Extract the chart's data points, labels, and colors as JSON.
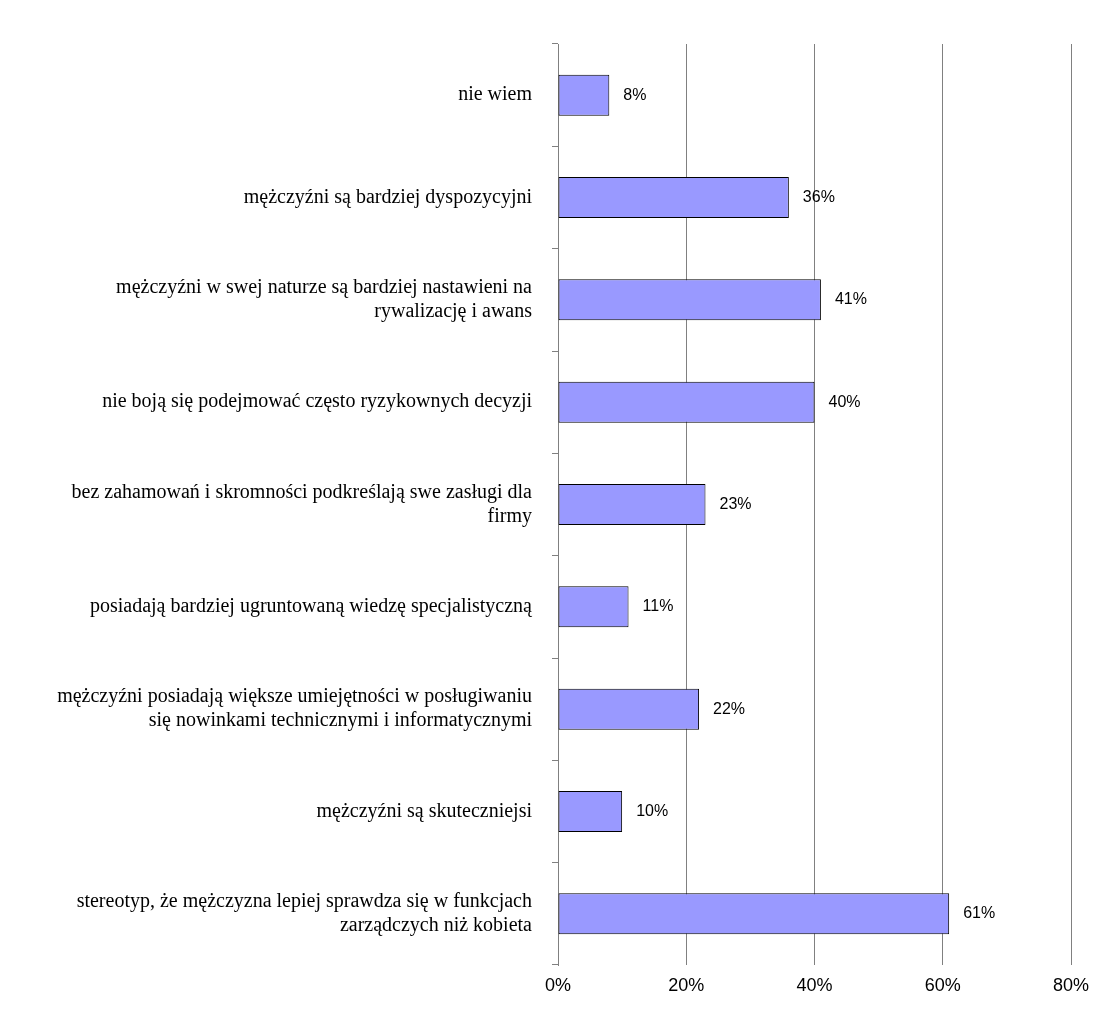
{
  "chart_data": {
    "type": "bar",
    "orientation": "horizontal",
    "categories": [
      "nie wiem",
      "mężczyźni są bardziej dyspozycyjni",
      "mężczyźni w swej naturze są bardziej nastawieni na rywalizację i awans",
      "nie boją się podejmować często ryzykownych decyzji",
      "bez zahamowań i skromności podkreślają swe zasługi dla firmy",
      "posiadają bardziej ugruntowaną wiedzę specjalistyczną",
      "mężczyźni posiadają większe umiejętności w posługiwaniu się nowinkami technicznymi i informatycznymi",
      "mężczyźni są skuteczniejsi",
      "stereotyp, że mężczyzna lepiej sprawdza się w funkcjach zarządczych niż kobieta"
    ],
    "values": [
      8,
      36,
      41,
      40,
      23,
      11,
      22,
      10,
      61
    ],
    "value_labels": [
      "8%",
      "36%",
      "41%",
      "40%",
      "23%",
      "11%",
      "22%",
      "10%",
      "61%"
    ],
    "color": "#9999ff",
    "xlim": [
      0,
      80
    ],
    "xticks": [
      {
        "value": 0,
        "label": "0%"
      },
      {
        "value": 20,
        "label": "20%"
      },
      {
        "value": 40,
        "label": "40%"
      },
      {
        "value": 60,
        "label": "60%"
      },
      {
        "value": 80,
        "label": "80%"
      }
    ],
    "grid": "x",
    "legend": false
  }
}
